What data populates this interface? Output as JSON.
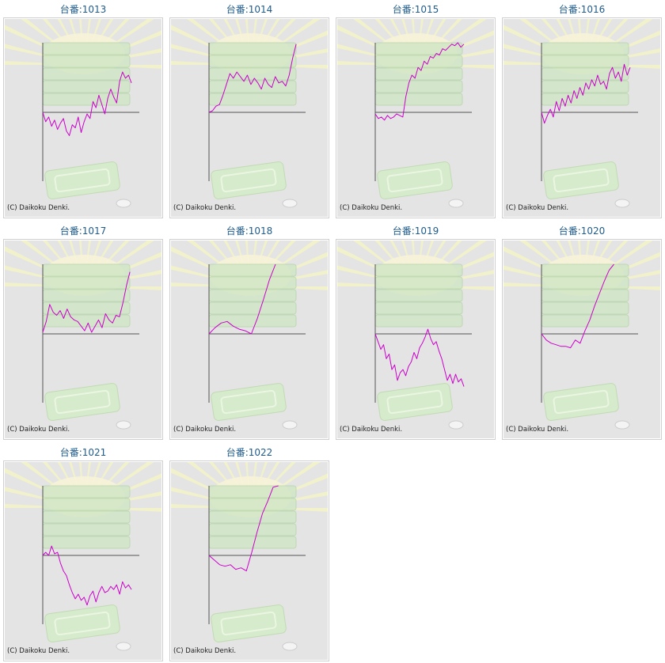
{
  "copyright": "(C) Daikoku Denki.",
  "colors": {
    "line": "#cc00cc",
    "axis": "#555555",
    "bg": "#e4e4e4",
    "title": "#1f5c8c"
  },
  "chart_data": [
    {
      "type": "line",
      "title": "台番:1013",
      "y": [
        0,
        -12,
        -6,
        -18,
        -10,
        -22,
        -14,
        -8,
        -24,
        -30,
        -16,
        -20,
        -6,
        -26,
        -12,
        -2,
        -8,
        14,
        6,
        22,
        10,
        -2,
        18,
        30,
        20,
        12,
        40,
        52,
        44,
        48,
        38
      ]
    },
    {
      "type": "line",
      "title": "台番:1014",
      "y": [
        0,
        2,
        8,
        10,
        22,
        36,
        50,
        44,
        52,
        46,
        40,
        48,
        36,
        44,
        38,
        30,
        44,
        36,
        32,
        46,
        38,
        40,
        34,
        48,
        70,
        88
      ]
    },
    {
      "type": "line",
      "title": "台番:1015",
      "y": [
        -2,
        -8,
        -6,
        -10,
        -4,
        -8,
        -6,
        -2,
        -4,
        -6,
        20,
        38,
        48,
        44,
        58,
        54,
        66,
        62,
        72,
        70,
        76,
        74,
        82,
        80,
        84,
        88,
        86,
        90,
        84,
        88
      ]
    },
    {
      "type": "line",
      "title": "台番:1016",
      "y": [
        0,
        -14,
        -4,
        4,
        -6,
        14,
        2,
        18,
        8,
        22,
        12,
        28,
        18,
        32,
        22,
        38,
        30,
        42,
        34,
        48,
        36,
        40,
        30,
        50,
        58,
        44,
        52,
        40,
        62,
        48,
        58
      ]
    },
    {
      "type": "line",
      "title": "台番:1017",
      "y": [
        2,
        16,
        38,
        28,
        24,
        30,
        20,
        32,
        22,
        18,
        16,
        10,
        4,
        14,
        2,
        10,
        18,
        8,
        26,
        18,
        14,
        24,
        22,
        40,
        62,
        80
      ]
    },
    {
      "type": "line",
      "title": "台番:1018",
      "y": [
        0,
        8,
        14,
        16,
        10,
        6,
        4,
        0,
        20,
        44,
        70,
        92
      ]
    },
    {
      "type": "line",
      "title": "台番:1019",
      "y": [
        0,
        -10,
        -20,
        -14,
        -32,
        -26,
        -46,
        -40,
        -60,
        -50,
        -46,
        -54,
        -42,
        -36,
        -24,
        -32,
        -18,
        -12,
        -4,
        6,
        -6,
        -14,
        -10,
        -22,
        -32,
        -46,
        -60,
        -52,
        -64,
        -52,
        -62,
        -58,
        -68
      ]
    },
    {
      "type": "line",
      "title": "台番:1020",
      "y": [
        0,
        -8,
        -12,
        -14,
        -16,
        -16,
        -18,
        -8,
        -12,
        4,
        18,
        36,
        52,
        68,
        82,
        90
      ]
    },
    {
      "type": "line",
      "title": "台番:1021",
      "y": [
        0,
        4,
        0,
        12,
        2,
        4,
        -10,
        -20,
        -26,
        -38,
        -48,
        -56,
        -50,
        -58,
        -54,
        -64,
        -52,
        -46,
        -60,
        -48,
        -40,
        -48,
        -46,
        -40,
        -44,
        -38,
        -50,
        -34,
        -42,
        -38,
        -44
      ]
    },
    {
      "type": "line",
      "title": "台番:1022",
      "y": [
        0,
        -6,
        -12,
        -14,
        -12,
        -18,
        -16,
        -20,
        4,
        30,
        54,
        70,
        88,
        108
      ]
    }
  ]
}
